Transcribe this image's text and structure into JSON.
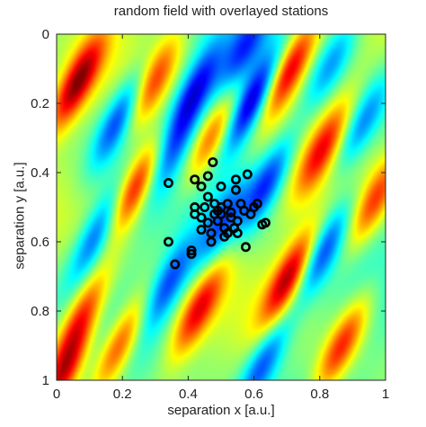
{
  "chart_data": {
    "type": "heatmap",
    "title": "random field with overlayed stations",
    "xlabel": "separation x [a.u.]",
    "ylabel": "separation y [a.u.]",
    "xlim": [
      0,
      1
    ],
    "ylim": [
      0,
      1
    ],
    "y_reversed": true,
    "grid": false,
    "legend": "none",
    "colormap": "jet",
    "xticks": [
      {
        "value": 0,
        "label": "0"
      },
      {
        "value": 0.2,
        "label": "0.2"
      },
      {
        "value": 0.4,
        "label": "0.4"
      },
      {
        "value": 0.6,
        "label": "0.6"
      },
      {
        "value": 0.8,
        "label": "0.8"
      },
      {
        "value": 1,
        "label": "1"
      }
    ],
    "yticks": [
      {
        "value": 0,
        "label": "0"
      },
      {
        "value": 0.2,
        "label": "0.2"
      },
      {
        "value": 0.4,
        "label": "0.4"
      },
      {
        "value": 0.6,
        "label": "0.6"
      },
      {
        "value": 0.8,
        "label": "0.8"
      },
      {
        "value": 1,
        "label": "1"
      }
    ],
    "field_features": [
      {
        "x": 0.06,
        "y": 0.14,
        "sign": 1,
        "amp": 1.0
      },
      {
        "x": 0.19,
        "y": 0.24,
        "sign": -1,
        "amp": 0.8
      },
      {
        "x": 0.24,
        "y": 0.44,
        "sign": 1,
        "amp": 1.0
      },
      {
        "x": 0.12,
        "y": 0.58,
        "sign": -1,
        "amp": 0.7
      },
      {
        "x": 0.07,
        "y": 0.82,
        "sign": 1,
        "amp": 0.8
      },
      {
        "x": 0.02,
        "y": 0.98,
        "sign": 1,
        "amp": 0.9
      },
      {
        "x": 0.19,
        "y": 0.9,
        "sign": 1,
        "amp": 0.8
      },
      {
        "x": 0.29,
        "y": 0.14,
        "sign": 1,
        "amp": 0.7
      },
      {
        "x": 0.34,
        "y": 0.72,
        "sign": -1,
        "amp": 0.7
      },
      {
        "x": 0.43,
        "y": 0.8,
        "sign": 1,
        "amp": 0.8
      },
      {
        "x": 0.42,
        "y": 0.16,
        "sign": -1,
        "amp": 0.8
      },
      {
        "x": 0.47,
        "y": 0.3,
        "sign": 1,
        "amp": 0.7
      },
      {
        "x": 0.59,
        "y": 0.2,
        "sign": -1,
        "amp": 1.0
      },
      {
        "x": 0.57,
        "y": 0.04,
        "sign": -1,
        "amp": 0.6
      },
      {
        "x": 0.64,
        "y": 0.43,
        "sign": -1,
        "amp": 0.8
      },
      {
        "x": 0.71,
        "y": 0.1,
        "sign": 1,
        "amp": 1.0
      },
      {
        "x": 0.71,
        "y": 0.7,
        "sign": 1,
        "amp": 1.0
      },
      {
        "x": 0.63,
        "y": 0.95,
        "sign": -1,
        "amp": 0.7
      },
      {
        "x": 0.81,
        "y": 0.33,
        "sign": 1,
        "amp": 0.7
      },
      {
        "x": 0.81,
        "y": 0.63,
        "sign": -1,
        "amp": 0.7
      },
      {
        "x": 0.87,
        "y": 0.9,
        "sign": 1,
        "amp": 0.8
      },
      {
        "x": 0.93,
        "y": 0.26,
        "sign": -1,
        "amp": 0.6
      },
      {
        "x": 0.97,
        "y": 0.48,
        "sign": 1,
        "amp": 0.7
      },
      {
        "x": 0.5,
        "y": 0.55,
        "sign": -1,
        "amp": 0.6
      },
      {
        "x": 0.84,
        "y": 0.08,
        "sign": -1,
        "amp": 0.5
      },
      {
        "x": 0.35,
        "y": 0.33,
        "sign": -1,
        "amp": 0.5
      }
    ],
    "stations": [
      {
        "x": 0.34,
        "y": 0.43
      },
      {
        "x": 0.34,
        "y": 0.6
      },
      {
        "x": 0.36,
        "y": 0.665
      },
      {
        "x": 0.41,
        "y": 0.625
      },
      {
        "x": 0.41,
        "y": 0.635
      },
      {
        "x": 0.42,
        "y": 0.5
      },
      {
        "x": 0.42,
        "y": 0.52
      },
      {
        "x": 0.42,
        "y": 0.42
      },
      {
        "x": 0.44,
        "y": 0.44
      },
      {
        "x": 0.44,
        "y": 0.53
      },
      {
        "x": 0.44,
        "y": 0.565
      },
      {
        "x": 0.45,
        "y": 0.5
      },
      {
        "x": 0.46,
        "y": 0.41
      },
      {
        "x": 0.46,
        "y": 0.47
      },
      {
        "x": 0.46,
        "y": 0.545
      },
      {
        "x": 0.47,
        "y": 0.6
      },
      {
        "x": 0.47,
        "y": 0.575
      },
      {
        "x": 0.475,
        "y": 0.37
      },
      {
        "x": 0.48,
        "y": 0.52
      },
      {
        "x": 0.48,
        "y": 0.49
      },
      {
        "x": 0.49,
        "y": 0.51
      },
      {
        "x": 0.49,
        "y": 0.54
      },
      {
        "x": 0.5,
        "y": 0.5
      },
      {
        "x": 0.5,
        "y": 0.52
      },
      {
        "x": 0.5,
        "y": 0.44
      },
      {
        "x": 0.51,
        "y": 0.56
      },
      {
        "x": 0.51,
        "y": 0.585
      },
      {
        "x": 0.52,
        "y": 0.49
      },
      {
        "x": 0.52,
        "y": 0.575
      },
      {
        "x": 0.53,
        "y": 0.53
      },
      {
        "x": 0.54,
        "y": 0.56
      },
      {
        "x": 0.545,
        "y": 0.42
      },
      {
        "x": 0.545,
        "y": 0.45
      },
      {
        "x": 0.55,
        "y": 0.54
      },
      {
        "x": 0.55,
        "y": 0.575
      },
      {
        "x": 0.56,
        "y": 0.49
      },
      {
        "x": 0.575,
        "y": 0.615
      },
      {
        "x": 0.58,
        "y": 0.405
      },
      {
        "x": 0.59,
        "y": 0.52
      },
      {
        "x": 0.6,
        "y": 0.5
      },
      {
        "x": 0.61,
        "y": 0.49
      },
      {
        "x": 0.625,
        "y": 0.55
      },
      {
        "x": 0.635,
        "y": 0.545
      },
      {
        "x": 0.57,
        "y": 0.51
      },
      {
        "x": 0.53,
        "y": 0.515
      }
    ]
  }
}
